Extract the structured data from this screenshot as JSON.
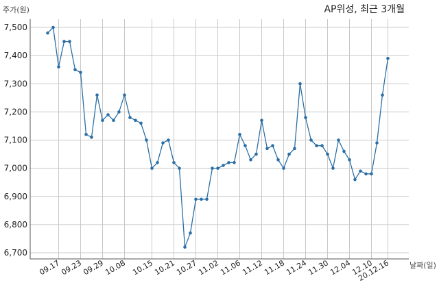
{
  "chart_data": {
    "type": "line",
    "title": "AP위성, 최근 3개월",
    "ylabel": "주가(원)",
    "xlabel": "날짜(일)",
    "ylim": [
      6700,
      7550
    ],
    "y_ticks": [
      6700,
      6800,
      6900,
      7000,
      7100,
      7200,
      7300,
      7400,
      7500
    ],
    "y_tick_labels": [
      "6,700",
      "6,800",
      "6,900",
      "7,000",
      "7,100",
      "7,200",
      "7,300",
      "7,400",
      "7,500"
    ],
    "x_tick_labels": [
      "09.17",
      "09.23",
      "09.29",
      "10.08",
      "10.15",
      "10.21",
      "10.27",
      "11.02",
      "11.06",
      "11.12",
      "11.18",
      "11.24",
      "11.30",
      "12.04",
      "12.10",
      "20.12.16"
    ],
    "x_tick_indices": [
      2,
      6,
      10,
      14,
      19,
      23,
      27,
      31,
      35,
      39,
      43,
      47,
      51,
      55,
      59,
      62
    ],
    "grid": true,
    "line_color": "#2a6ea5",
    "series": [
      {
        "values": [
          7480,
          7500,
          7360,
          7450,
          7450,
          7350,
          7340,
          7120,
          7110,
          7260,
          7170,
          7190,
          7170,
          7200,
          7260,
          7180,
          7170,
          7160,
          7100,
          7000,
          7020,
          7090,
          7100,
          7020,
          7000,
          6720,
          6770,
          6890,
          6890,
          6890,
          7000,
          7000,
          7010,
          7020,
          7020,
          7120,
          7080,
          7030,
          7050,
          7170,
          7070,
          7080,
          7030,
          7000,
          7050,
          7070,
          7300,
          7180,
          7100,
          7080,
          7080,
          7050,
          7000,
          7100,
          7060,
          7030,
          6960,
          6990,
          6980,
          6980,
          7090,
          7260,
          7390
        ]
      }
    ]
  }
}
